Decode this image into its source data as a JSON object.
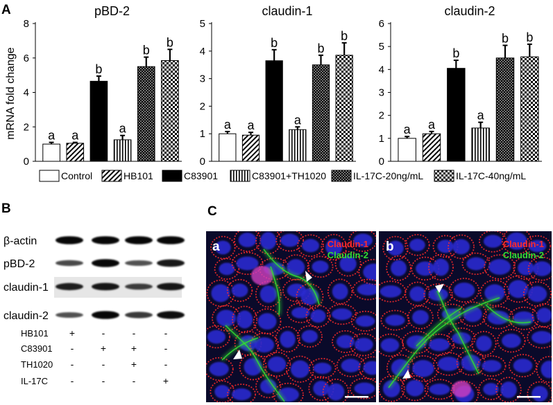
{
  "panel_labels": {
    "A": "A",
    "B": "B",
    "C": "C"
  },
  "ylabel": "mRNA fold change",
  "legend": [
    {
      "label": "Control",
      "pattern": "white"
    },
    {
      "label": "HB101",
      "pattern": "diag"
    },
    {
      "label": "C83901",
      "pattern": "black"
    },
    {
      "label": "C83901+TH1020",
      "pattern": "vert"
    },
    {
      "label": "IL-17C-20ng/mL",
      "pattern": "dots"
    },
    {
      "label": "IL-17C-40ng/mL",
      "pattern": "checker"
    }
  ],
  "chart_data": [
    {
      "type": "bar",
      "title": "pBD-2",
      "ylabel": "mRNA fold change",
      "ylim": [
        0,
        8
      ],
      "yticks": [
        0,
        2,
        4,
        6,
        8
      ],
      "categories": [
        "Control",
        "HB101",
        "C83901",
        "C83901+TH1020",
        "IL-17C-20ng/mL",
        "IL-17C-40ng/mL"
      ],
      "values": [
        1.0,
        1.05,
        4.65,
        1.25,
        5.5,
        5.85
      ],
      "errors": [
        0.1,
        0.05,
        0.3,
        0.25,
        0.55,
        0.65
      ],
      "labels": [
        "a",
        "a",
        "b",
        "a",
        "b",
        "b"
      ]
    },
    {
      "type": "bar",
      "title": "claudin-1",
      "ylabel": "",
      "ylim": [
        0,
        5
      ],
      "yticks": [
        0,
        1,
        2,
        3,
        4,
        5
      ],
      "categories": [
        "Control",
        "HB101",
        "C83901",
        "C83901+TH1020",
        "IL-17C-20ng/mL",
        "IL-17C-40ng/mL"
      ],
      "values": [
        1.0,
        0.95,
        3.65,
        1.15,
        3.5,
        3.85
      ],
      "errors": [
        0.08,
        0.1,
        0.4,
        0.1,
        0.35,
        0.45
      ],
      "labels": [
        "a",
        "a",
        "b",
        "a",
        "b",
        "b"
      ]
    },
    {
      "type": "bar",
      "title": "claudin-2",
      "ylabel": "",
      "ylim": [
        0,
        6
      ],
      "yticks": [
        0,
        1,
        2,
        3,
        4,
        5,
        6
      ],
      "categories": [
        "Control",
        "HB101",
        "C83901",
        "C83901+TH1020",
        "IL-17C-20ng/mL",
        "IL-17C-40ng/mL"
      ],
      "values": [
        1.0,
        1.2,
        4.05,
        1.45,
        4.5,
        4.55
      ],
      "errors": [
        0.08,
        0.1,
        0.35,
        0.25,
        0.55,
        0.55
      ],
      "labels": [
        "a",
        "a",
        "b",
        "a",
        "b",
        "b"
      ]
    }
  ],
  "blot": {
    "rows": [
      "β-actin",
      "pBD-2",
      "claudin-1",
      "claudin-2"
    ],
    "intensity": [
      [
        0.95,
        0.95,
        0.95,
        0.95
      ],
      [
        0.55,
        0.95,
        0.5,
        0.85
      ],
      [
        0.8,
        0.85,
        0.6,
        0.85
      ],
      [
        0.5,
        0.95,
        0.65,
        0.9
      ]
    ],
    "treatments": [
      {
        "name": "HB101",
        "signs": [
          "+",
          "-",
          "-",
          "-"
        ]
      },
      {
        "name": "C83901",
        "signs": [
          "-",
          "+",
          "+",
          "-"
        ]
      },
      {
        "name": "TH1020",
        "signs": [
          "-",
          "-",
          "+",
          "-"
        ]
      },
      {
        "name": "IL-17C",
        "signs": [
          "-",
          "-",
          "-",
          "+"
        ]
      }
    ]
  },
  "micro": {
    "a": {
      "label": "a",
      "stain1": "Claudin-1",
      "stain2": "Claudin-2"
    },
    "b": {
      "label": "b",
      "stain1": "Claudin-1",
      "stain2": "Claudin-2"
    },
    "colors": {
      "stain1": "#ff2a2a",
      "stain2": "#33dd33",
      "nuclei": "#2a2ad0",
      "background": "#0a0a2a"
    }
  }
}
